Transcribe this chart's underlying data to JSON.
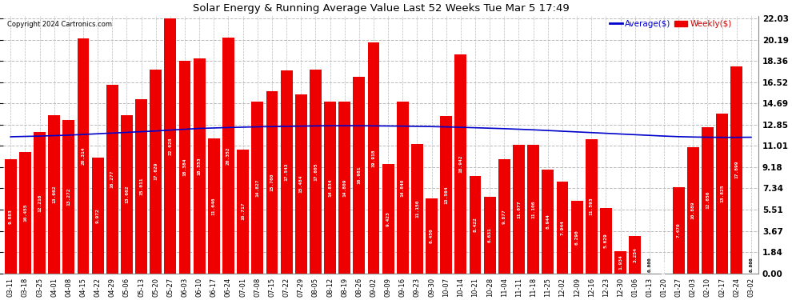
{
  "title": "Solar Energy & Running Average Value Last 52 Weeks Tue Mar 5 17:49",
  "copyright": "Copyright 2024 Cartronics.com",
  "legend_avg": "Average($)",
  "legend_weekly": "Weekly($)",
  "categories": [
    "03-11",
    "03-18",
    "03-25",
    "04-01",
    "04-08",
    "04-15",
    "04-22",
    "04-29",
    "05-06",
    "05-13",
    "05-20",
    "05-27",
    "06-03",
    "06-10",
    "06-17",
    "06-24",
    "07-01",
    "07-08",
    "07-15",
    "07-22",
    "07-29",
    "08-05",
    "08-12",
    "08-19",
    "08-26",
    "09-02",
    "09-09",
    "09-16",
    "09-23",
    "09-30",
    "10-07",
    "10-14",
    "10-21",
    "10-28",
    "11-04",
    "11-11",
    "11-18",
    "11-25",
    "12-02",
    "12-09",
    "12-16",
    "12-23",
    "12-30",
    "01-06",
    "01-13",
    "01-20",
    "01-27",
    "02-03",
    "02-10",
    "02-17",
    "02-24",
    "03-02"
  ],
  "values": [
    9.883,
    10.455,
    12.216,
    13.662,
    13.272,
    20.314,
    9.972,
    16.277,
    13.662,
    15.011,
    17.629,
    22.028,
    18.384,
    18.553,
    11.646,
    20.352,
    10.717,
    14.827,
    15.76,
    17.543,
    15.484,
    17.605,
    14.834,
    14.809,
    16.981,
    19.918,
    9.423,
    14.84,
    11.15,
    6.45,
    13.564,
    18.942,
    8.422,
    6.631,
    9.877,
    11.077,
    11.106,
    8.944,
    7.944,
    6.29,
    11.593,
    5.629,
    1.934,
    3.254,
    0.0,
    0.013,
    7.47,
    10.889,
    12.656,
    13.825,
    17.899,
    0.0
  ],
  "avg_values": [
    11.8,
    11.83,
    11.86,
    11.9,
    11.94,
    12.0,
    12.06,
    12.12,
    12.18,
    12.24,
    12.3,
    12.38,
    12.45,
    12.52,
    12.56,
    12.6,
    12.63,
    12.66,
    12.68,
    12.7,
    12.72,
    12.74,
    12.75,
    12.75,
    12.75,
    12.74,
    12.73,
    12.72,
    12.7,
    12.68,
    12.65,
    12.62,
    12.58,
    12.54,
    12.5,
    12.45,
    12.4,
    12.34,
    12.28,
    12.22,
    12.16,
    12.1,
    12.04,
    11.98,
    11.92,
    11.86,
    11.81,
    11.78,
    11.76,
    11.75,
    11.75,
    11.76
  ],
  "bar_color": "#ee0000",
  "avg_line_color": "#0000cc",
  "weekly_text_color": "#cc0000",
  "background_color": "#ffffff",
  "grid_color": "#bbbbbb",
  "title_color": "#000000",
  "ytick_values": [
    0.0,
    1.84,
    3.67,
    5.51,
    7.34,
    9.18,
    11.01,
    12.85,
    14.69,
    16.52,
    18.36,
    20.19,
    22.03
  ],
  "ymax": 22.03,
  "ymin": 0.0
}
